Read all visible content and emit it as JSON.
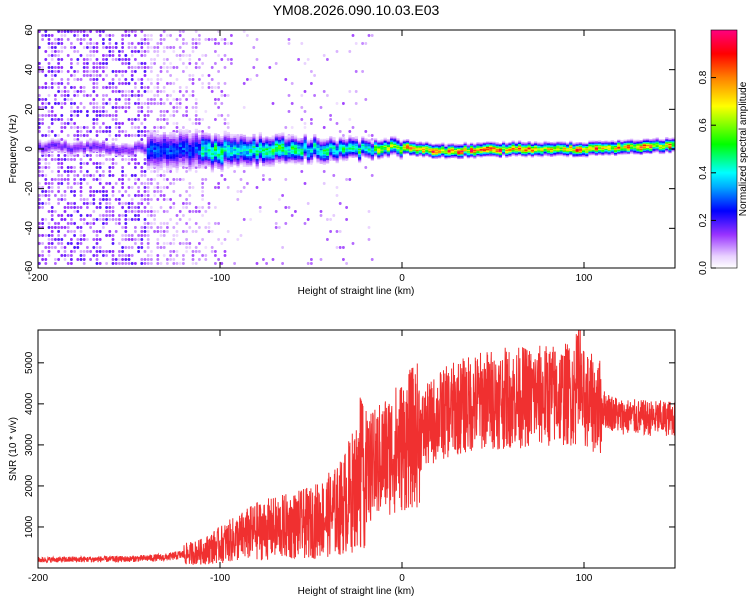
{
  "title": "YM08.2026.090.10.03.E03",
  "chart_data": [
    {
      "type": "heatmap",
      "name": "spectrogram",
      "xlabel": "Height of straight line (km)",
      "ylabel": "Frequency (Hz)",
      "xlim": [
        -200,
        150
      ],
      "ylim": [
        -60,
        60
      ],
      "x_ticks": [
        -200,
        -100,
        0,
        100
      ],
      "y_ticks": [
        -60,
        -40,
        -20,
        0,
        20,
        40,
        60
      ],
      "colorbar": {
        "label": "Normalized spectral amplitude",
        "range": [
          0,
          1
        ],
        "ticks": [
          "0.0",
          "0.2",
          "0.4",
          "0.6",
          "0.8"
        ],
        "ticks_values": [
          0.0,
          0.2,
          0.4,
          0.6,
          0.8
        ],
        "colors": [
          "#ffffff",
          "#cc99ff",
          "#7f00ff",
          "#0000ff",
          "#00ffff",
          "#00ff00",
          "#ffff00",
          "#ff8000",
          "#ff0000",
          "#ff0080"
        ]
      },
      "ridge": {
        "description_points_x": [
          -150,
          -100,
          -60,
          -20,
          0,
          20,
          60,
          100,
          150
        ],
        "description_points_freq": [
          0,
          -1,
          0,
          0,
          1,
          -1,
          0,
          0,
          2
        ]
      }
    },
    {
      "type": "line",
      "name": "snr",
      "xlabel": "Height of straight line (km)",
      "ylabel": "SNR (10 * v/v)",
      "xlim": [
        -200,
        150
      ],
      "ylim": [
        0,
        5800
      ],
      "x_ticks": [
        -200,
        -100,
        0,
        100
      ],
      "y_ticks": [
        1000,
        2000,
        3000,
        4000,
        5000
      ],
      "color": "#f03030",
      "envelope": {
        "x": [
          -200,
          -150,
          -130,
          -110,
          -95,
          -80,
          -65,
          -50,
          -35,
          -20,
          -10,
          0,
          10,
          20,
          30,
          45,
          60,
          80,
          95,
          100,
          110,
          120,
          135,
          150
        ],
        "y": [
          200,
          220,
          260,
          400,
          650,
          900,
          1000,
          1100,
          1400,
          2300,
          2700,
          3000,
          3300,
          3700,
          3900,
          4100,
          4150,
          4200,
          4250,
          4100,
          3900,
          3700,
          3650,
          3650
        ]
      }
    }
  ]
}
